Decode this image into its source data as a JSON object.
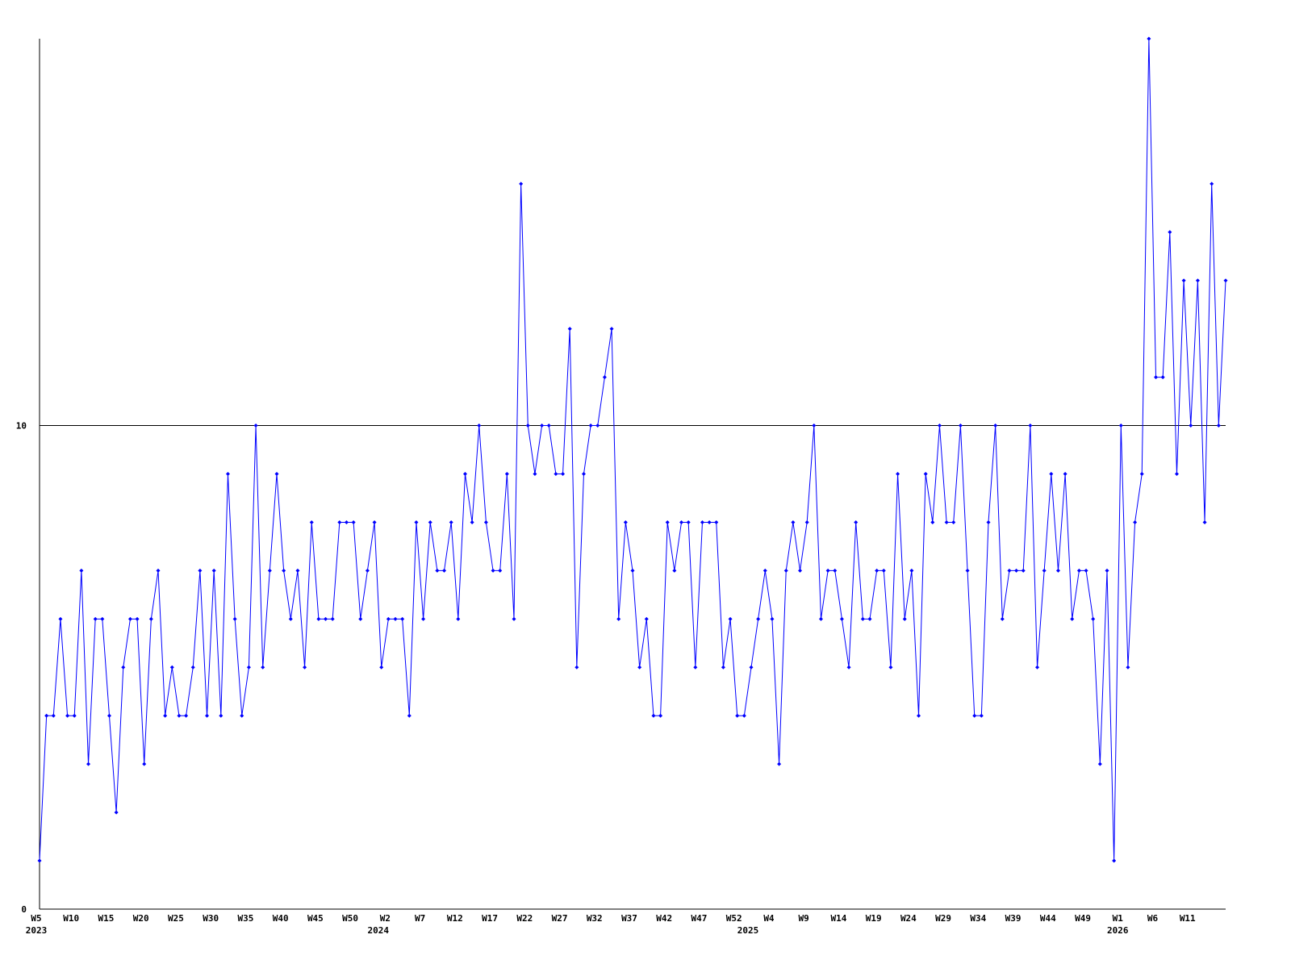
{
  "chart_data": {
    "type": "line",
    "categories": [
      "W5",
      null,
      null,
      null,
      null,
      "W10",
      null,
      null,
      null,
      null,
      "W15",
      null,
      null,
      null,
      null,
      "W20",
      null,
      null,
      null,
      null,
      "W25",
      null,
      null,
      null,
      null,
      "W30",
      null,
      null,
      null,
      null,
      "W35",
      null,
      null,
      null,
      null,
      "W40",
      null,
      null,
      null,
      null,
      "W45",
      null,
      null,
      null,
      null,
      "W50",
      null,
      null,
      null,
      null,
      "W2",
      null,
      null,
      null,
      null,
      "W7",
      null,
      null,
      null,
      null,
      "W12",
      null,
      null,
      null,
      null,
      "W17",
      null,
      null,
      null,
      null,
      "W22",
      null,
      null,
      null,
      null,
      "W27",
      null,
      null,
      null,
      null,
      "W32",
      null,
      null,
      null,
      null,
      "W37",
      null,
      null,
      null,
      null,
      "W42",
      null,
      null,
      null,
      null,
      "W47",
      null,
      null,
      null,
      null,
      "W52",
      null,
      null,
      null,
      null,
      "W4",
      null,
      null,
      null,
      null,
      "W9",
      null,
      null,
      null,
      null,
      "W14",
      null,
      null,
      null,
      null,
      "W19",
      null,
      null,
      null,
      null,
      "W24",
      null,
      null,
      null,
      null,
      "W29",
      null,
      null,
      null,
      null,
      "W34",
      null,
      null,
      null,
      null,
      "W39",
      null,
      null,
      null,
      null,
      "W44",
      null,
      null,
      null,
      null,
      "W49",
      null,
      null,
      null,
      null,
      "W1",
      null,
      null,
      null,
      null,
      "W6",
      null,
      null,
      null,
      null,
      "W11",
      null,
      null,
      null,
      null,
      null
    ],
    "category_years": [
      "2023",
      null,
      null,
      null,
      null,
      null,
      null,
      null,
      null,
      null,
      null,
      null,
      null,
      null,
      null,
      null,
      null,
      null,
      null,
      null,
      null,
      null,
      null,
      null,
      null,
      null,
      null,
      null,
      null,
      null,
      null,
      null,
      null,
      null,
      null,
      null,
      null,
      null,
      null,
      null,
      null,
      null,
      null,
      null,
      null,
      null,
      null,
      null,
      null,
      "2024",
      null,
      null,
      null,
      null,
      null,
      null,
      null,
      null,
      null,
      null,
      null,
      null,
      null,
      null,
      null,
      null,
      null,
      null,
      null,
      null,
      null,
      null,
      null,
      null,
      null,
      null,
      null,
      null,
      null,
      null,
      null,
      null,
      null,
      null,
      null,
      null,
      null,
      null,
      null,
      null,
      null,
      null,
      null,
      null,
      null,
      null,
      null,
      null,
      null,
      null,
      null,
      null,
      "2025",
      null,
      null,
      null,
      null,
      null,
      null,
      null,
      null,
      null,
      null,
      null,
      null,
      null,
      null,
      null,
      null,
      null,
      null,
      null,
      null,
      null,
      null,
      null,
      null,
      null,
      null,
      null,
      null,
      null,
      null,
      null,
      null,
      null,
      null,
      null,
      null,
      null,
      null,
      null,
      null,
      null,
      null,
      null,
      null,
      null,
      null,
      null,
      null,
      null,
      null,
      null,
      null,
      "2026",
      null,
      null,
      null,
      null,
      null,
      null,
      null,
      null,
      null,
      null,
      null,
      null,
      null,
      null,
      null
    ],
    "values": [
      1,
      4,
      4,
      6,
      4,
      4,
      7,
      3,
      6,
      6,
      4,
      2,
      5,
      6,
      6,
      3,
      6,
      7,
      4,
      5,
      4,
      4,
      5,
      7,
      4,
      7,
      4,
      9,
      6,
      4,
      5,
      10,
      5,
      7,
      9,
      7,
      6,
      7,
      5,
      8,
      6,
      6,
      6,
      8,
      8,
      8,
      6,
      7,
      8,
      5,
      6,
      6,
      6,
      4,
      8,
      6,
      8,
      7,
      7,
      8,
      6,
      9,
      8,
      10,
      8,
      7,
      7,
      9,
      6,
      15,
      10,
      9,
      10,
      10,
      9,
      9,
      12,
      5,
      9,
      10,
      10,
      11,
      12,
      6,
      8,
      7,
      5,
      6,
      4,
      4,
      8,
      7,
      8,
      8,
      5,
      8,
      8,
      8,
      5,
      6,
      4,
      4,
      5,
      6,
      7,
      6,
      3,
      7,
      8,
      7,
      8,
      10,
      6,
      7,
      7,
      6,
      5,
      8,
      6,
      6,
      7,
      7,
      5,
      9,
      6,
      7,
      4,
      9,
      8,
      10,
      8,
      8,
      10,
      7,
      4,
      4,
      8,
      10,
      6,
      7,
      7,
      7,
      10,
      5,
      7,
      9,
      7,
      9,
      6,
      7,
      7,
      6,
      3,
      7,
      1,
      10,
      5,
      8,
      9,
      18,
      11,
      11,
      14,
      9,
      13,
      10,
      13,
      8,
      15,
      10,
      13
    ],
    "color": "#0000ff",
    "ylim": [
      0,
      18
    ],
    "yticks": [
      0,
      10
    ],
    "grid": true
  }
}
